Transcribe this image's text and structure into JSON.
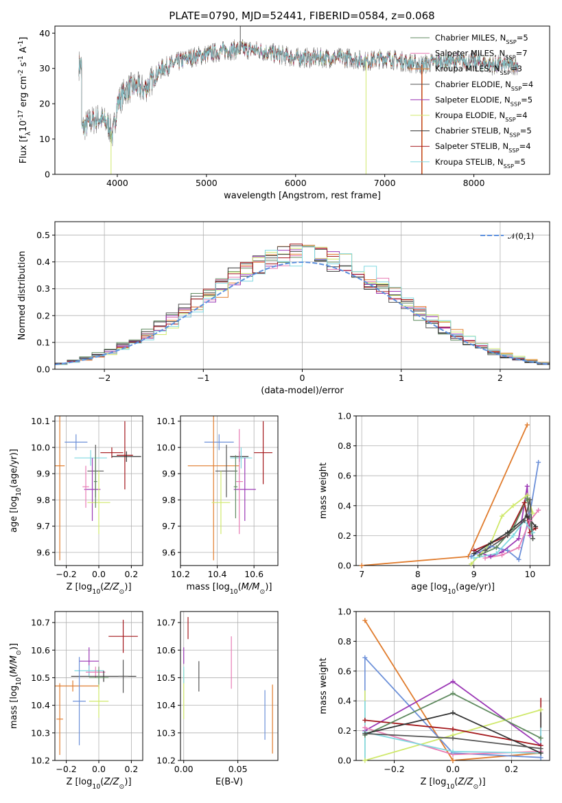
{
  "colors": [
    "#5f8a5f",
    "#e87cb4",
    "#e07b2c",
    "#555555",
    "#9b37b5",
    "#cfe86a",
    "#333333",
    "#a3161a",
    "#7fd8e0"
  ],
  "series_names": [
    "Chabrier MILES, N$_{SSP}$=5",
    "Salpeter MILES, N$_{SSP}$=7",
    "Kroupa MILES, N$_{SSP}$=3",
    "Chabrier ELODIE, N$_{SSP}$=4",
    "Salpeter ELODIE, N$_{SSP}$=5",
    "Kroupa ELODIE, N$_{SSP}$=4",
    "Chabrier STELIB, N$_{SSP}$=5",
    "Salpeter STELIB, N$_{SSP}$=4",
    "Kroupa STELIB, N$_{SSP}$=5"
  ],
  "chart_data": [
    {
      "id": "spectrum",
      "type": "line",
      "title": "PLATE=0790, MJD=52441, FIBERID=0584, z=0.068",
      "xlabel": "wavelength [Angstrom, rest frame]",
      "ylabel": "Flux [f$_\\lambda$10$^{-17}$ erg cm$^{-2}$ s$^{-1}$ A$^{-1}$]",
      "xlim": [
        3300,
        8850
      ],
      "ylim": [
        0,
        42
      ],
      "xticks": [
        4000,
        5000,
        6000,
        7000,
        8000
      ],
      "yticks": [
        0,
        10,
        20,
        30,
        40
      ],
      "grid": false,
      "legend_position": "top-right",
      "continuum_x": [
        3600,
        3700,
        3800,
        3900,
        3950,
        4000,
        4100,
        4200,
        4300,
        4400,
        4500,
        4600,
        4800,
        5000,
        5200,
        5400,
        5600,
        5800,
        6000,
        6200,
        6400,
        6600,
        6800,
        7000,
        7200,
        7400,
        7600,
        7800,
        8000,
        8200,
        8400
      ],
      "continuum_y": [
        13,
        15,
        16,
        14,
        11,
        20,
        24,
        25,
        24,
        27,
        30,
        31,
        33,
        34,
        35,
        35.5,
        35,
        34,
        33,
        33,
        33,
        33,
        32,
        33,
        32,
        31,
        32,
        32,
        32,
        31,
        31
      ]
    },
    {
      "id": "residuals",
      "type": "histogram",
      "xlabel": "(data-model)/error",
      "ylabel": "Normed distribution",
      "xlim": [
        -2.5,
        2.5
      ],
      "ylim": [
        0,
        0.55
      ],
      "xticks": [
        -2,
        -1,
        0,
        1,
        2
      ],
      "xtick_labels": [
        "−2",
        "−1",
        "0",
        "1",
        "2"
      ],
      "yticks": [
        0.0,
        0.1,
        0.2,
        0.3,
        0.4,
        0.5
      ],
      "ytick_labels": [
        "0.0",
        "0.1",
        "0.2",
        "0.3",
        "0.4",
        "0.5"
      ],
      "grid": true,
      "legend_label": "$\\mathcal{N}(0,1)$",
      "legend_position": "top-right",
      "bin_width": 0.125
    },
    {
      "id": "age-vs-z",
      "type": "errorbar",
      "xlabel": "Z [log$_{10}$($Z/Z_\\odot$)]",
      "ylabel": "age  [log$_{10}$($age/yr$)]",
      "xlim": [
        -0.27,
        0.27
      ],
      "ylim": [
        9.55,
        10.12
      ],
      "xticks": [
        -0.2,
        0.0,
        0.2
      ],
      "xtick_labels": [
        "−0.2",
        "0.0",
        "0.2"
      ],
      "yticks": [
        9.6,
        9.7,
        9.8,
        9.9,
        10.0,
        10.1
      ],
      "ytick_labels": [
        "9.6",
        "9.7",
        "9.8",
        "9.9",
        "10.0",
        "10.1"
      ],
      "grid": true,
      "points": [
        {
          "x": -0.14,
          "y": 10.02,
          "xerr": 0.07,
          "yerr": 0.03,
          "c": "#6b8fd8"
        },
        {
          "x": 0.08,
          "y": 9.98,
          "xerr": 0.07,
          "yerr": 0.02,
          "c": "#a3161a"
        },
        {
          "x": 0.16,
          "y": 9.97,
          "xerr": 0.05,
          "yerr": 0.13,
          "c": "#a3161a"
        },
        {
          "x": -0.05,
          "y": 9.96,
          "xerr": 0.1,
          "yerr": 0.03,
          "c": "#7fd8e0"
        },
        {
          "x": -0.24,
          "y": 9.93,
          "xerr": 0.03,
          "yerr": 0.36,
          "c": "#e07b2c"
        },
        {
          "x": -0.02,
          "y": 9.91,
          "xerr": 0.05,
          "yerr": 0.1,
          "c": "#555555"
        },
        {
          "x": -0.04,
          "y": 9.84,
          "xerr": 0.05,
          "yerr": 0.12,
          "c": "#9b37b5"
        },
        {
          "x": 0.0,
          "y": 9.79,
          "xerr": 0.07,
          "yerr": 0.12,
          "c": "#cfe86a"
        },
        {
          "x": 0.17,
          "y": 9.965,
          "xerr": 0.09,
          "yerr": 0.02,
          "c": "#333333"
        },
        {
          "x": -0.08,
          "y": 9.85,
          "xerr": 0.02,
          "yerr": 0.08,
          "c": "#e87cb4"
        },
        {
          "x": -0.02,
          "y": 9.87,
          "xerr": 0.01,
          "yerr": 0.1,
          "c": "#5f8a5f"
        }
      ]
    },
    {
      "id": "age-vs-mass",
      "type": "errorbar",
      "xlabel": "mass [log$_{10}$($M/M_\\odot$)]",
      "ylabel": "",
      "xlim": [
        10.2,
        10.73
      ],
      "ylim": [
        9.55,
        10.12
      ],
      "xticks": [
        10.2,
        10.4,
        10.6
      ],
      "xtick_labels": [
        "10.2",
        "10.4",
        "10.6"
      ],
      "yticks": [
        9.6,
        9.7,
        9.8,
        9.9,
        10.0,
        10.1
      ],
      "ytick_labels": [
        "9.6",
        "9.7",
        "9.8",
        "9.9",
        "10.0",
        "10.1"
      ],
      "grid": true,
      "points": [
        {
          "x": 10.41,
          "y": 10.02,
          "xerr": 0.08,
          "yerr": 0.03,
          "c": "#6b8fd8"
        },
        {
          "x": 10.65,
          "y": 9.98,
          "xerr": 0.05,
          "yerr": 0.12,
          "c": "#a3161a"
        },
        {
          "x": 10.52,
          "y": 9.965,
          "xerr": 0.05,
          "yerr": 0.02,
          "c": "#333333"
        },
        {
          "x": 10.53,
          "y": 9.96,
          "xerr": 0.06,
          "yerr": 0.04,
          "c": "#7fd8e0"
        },
        {
          "x": 10.38,
          "y": 9.93,
          "xerr": 0.14,
          "yerr": 0.36,
          "c": "#e07b2c"
        },
        {
          "x": 10.45,
          "y": 9.91,
          "xerr": 0.06,
          "yerr": 0.1,
          "c": "#555555"
        },
        {
          "x": 10.55,
          "y": 9.84,
          "xerr": 0.06,
          "yerr": 0.12,
          "c": "#9b37b5"
        },
        {
          "x": 10.42,
          "y": 9.79,
          "xerr": 0.05,
          "yerr": 0.12,
          "c": "#cfe86a"
        },
        {
          "x": 10.52,
          "y": 9.87,
          "xerr": 0.02,
          "yerr": 0.2,
          "c": "#e87cb4"
        },
        {
          "x": 10.5,
          "y": 9.85,
          "xerr": 0.01,
          "yerr": 0.12,
          "c": "#5f8a5f"
        }
      ]
    },
    {
      "id": "weight-vs-age",
      "type": "line",
      "xlabel": "age  [log$_{10}$($age/yr$)]",
      "ylabel": "mass weight",
      "xlim": [
        6.9,
        10.35
      ],
      "ylim": [
        0,
        1.0
      ],
      "xticks": [
        7,
        8,
        9,
        10
      ],
      "xtick_labels": [
        "7",
        "8",
        "9",
        "10"
      ],
      "yticks": [
        0.0,
        0.2,
        0.4,
        0.6,
        0.8,
        1.0
      ],
      "ytick_labels": [
        "0.0",
        "0.2",
        "0.4",
        "0.6",
        "0.8",
        "1.0"
      ],
      "grid": true,
      "series": [
        {
          "c": "#e07b2c",
          "x": [
            7.0,
            8.9,
            9.95
          ],
          "y": [
            0.0,
            0.06,
            0.94
          ]
        },
        {
          "c": "#6b8fd8",
          "x": [
            8.95,
            9.3,
            9.6,
            9.8,
            10.0,
            10.15
          ],
          "y": [
            0.06,
            0.13,
            0.1,
            0.04,
            0.35,
            0.69
          ]
        },
        {
          "c": "#9b37b5",
          "x": [
            9.0,
            9.3,
            9.5,
            9.8,
            9.95,
            10.0
          ],
          "y": [
            0.1,
            0.06,
            0.09,
            0.18,
            0.53,
            0.2
          ]
        },
        {
          "c": "#cfe86a",
          "x": [
            8.95,
            9.3,
            9.5,
            9.7,
            9.95,
            10.05
          ],
          "y": [
            0.01,
            0.15,
            0.33,
            0.4,
            0.47,
            0.35
          ]
        },
        {
          "c": "#a3161a",
          "x": [
            9.0,
            9.6,
            9.9,
            10.0,
            10.1
          ],
          "y": [
            0.1,
            0.2,
            0.42,
            0.22,
            0.25
          ]
        },
        {
          "c": "#e87cb4",
          "x": [
            9.2,
            9.5,
            9.8,
            10.0,
            10.15
          ],
          "y": [
            0.05,
            0.07,
            0.12,
            0.3,
            0.37
          ]
        },
        {
          "c": "#7fd8e0",
          "x": [
            9.0,
            9.4,
            9.7,
            9.9,
            10.05
          ],
          "y": [
            0.05,
            0.08,
            0.2,
            0.3,
            0.22
          ]
        },
        {
          "c": "#5f8a5f",
          "x": [
            9.1,
            9.4,
            9.7,
            9.95,
            10.05
          ],
          "y": [
            0.07,
            0.12,
            0.25,
            0.45,
            0.18
          ]
        },
        {
          "c": "#333333",
          "x": [
            9.0,
            9.3,
            9.6,
            9.95,
            10.1
          ],
          "y": [
            0.08,
            0.15,
            0.22,
            0.33,
            0.26
          ]
        },
        {
          "c": "#555555",
          "x": [
            9.2,
            9.6,
            9.9,
            10.0,
            10.05
          ],
          "y": [
            0.1,
            0.2,
            0.3,
            0.44,
            0.18
          ]
        }
      ]
    },
    {
      "id": "mass-vs-z",
      "type": "errorbar",
      "xlabel": "Z [log$_{10}$($Z/Z_\\odot$)]",
      "ylabel": "mass [log$_{10}$($M/M_\\odot$)]",
      "xlim": [
        -0.27,
        0.27
      ],
      "ylim": [
        10.2,
        10.74
      ],
      "xticks": [
        -0.2,
        0.0,
        0.2
      ],
      "xtick_labels": [
        "−0.2",
        "0.0",
        "0.2"
      ],
      "yticks": [
        10.2,
        10.3,
        10.4,
        10.5,
        10.6,
        10.7
      ],
      "ytick_labels": [
        "10.2",
        "10.3",
        "10.4",
        "10.5",
        "10.6",
        "10.7"
      ],
      "grid": true,
      "points": [
        {
          "x": 0.15,
          "y": 10.65,
          "xerr": 0.09,
          "yerr": 0.06,
          "c": "#a3161a"
        },
        {
          "x": -0.06,
          "y": 10.56,
          "xerr": 0.06,
          "yerr": 0.05,
          "c": "#9b37b5"
        },
        {
          "x": -0.06,
          "y": 10.525,
          "xerr": 0.09,
          "yerr": 0.02,
          "c": "#7fd8e0"
        },
        {
          "x": -0.02,
          "y": 10.52,
          "xerr": 0.06,
          "yerr": 0.02,
          "c": "#e87cb4"
        },
        {
          "x": 0.03,
          "y": 10.505,
          "xerr": 0.2,
          "yerr": 0.02,
          "c": "#333333"
        },
        {
          "x": 0.15,
          "y": 10.505,
          "xerr": 0.03,
          "yerr": 0.06,
          "c": "#555555"
        },
        {
          "x": 0.0,
          "y": 10.5,
          "xerr": 0.06,
          "yerr": 0.04,
          "c": "#5f8a5f"
        },
        {
          "x": -0.16,
          "y": 10.47,
          "xerr": 0.16,
          "yerr": 0.02,
          "c": "#e07b2c"
        },
        {
          "x": -0.24,
          "y": 10.35,
          "xerr": 0.02,
          "yerr": 0.13,
          "c": "#e07b2c"
        },
        {
          "x": -0.12,
          "y": 10.415,
          "xerr": 0.04,
          "yerr": 0.16,
          "c": "#6b8fd8"
        },
        {
          "x": 0.0,
          "y": 10.415,
          "xerr": 0.06,
          "yerr": 0.06,
          "c": "#cfe86a"
        }
      ]
    },
    {
      "id": "mass-vs-ebv",
      "type": "errorbar",
      "xlabel": "E(B-V)",
      "ylabel": "",
      "xlim": [
        -0.003,
        0.087
      ],
      "ylim": [
        10.2,
        10.74
      ],
      "xticks": [
        0.0,
        0.05
      ],
      "xtick_labels": [
        "0.00",
        "0.05"
      ],
      "yticks": [
        10.2,
        10.3,
        10.4,
        10.5,
        10.6,
        10.7
      ],
      "ytick_labels": [
        "10.2",
        "10.3",
        "10.4",
        "10.5",
        "10.6",
        "10.7"
      ],
      "grid": true,
      "points": [
        {
          "x": 0.004,
          "y": 10.68,
          "xerr": 0,
          "yerr": 0.04,
          "c": "#a3161a"
        },
        {
          "x": 0.0,
          "y": 10.58,
          "xerr": 0,
          "yerr": 0.03,
          "c": "#9b37b5"
        },
        {
          "x": 0.0,
          "y": 10.44,
          "xerr": 0,
          "yerr": 0.09,
          "c": "#cfe86a"
        },
        {
          "x": 0.0,
          "y": 10.51,
          "xerr": 0,
          "yerr": 0.03,
          "c": "#7fd8e0"
        },
        {
          "x": 0.014,
          "y": 10.505,
          "xerr": 0,
          "yerr": 0.055,
          "c": "#555555"
        },
        {
          "x": 0.044,
          "y": 10.555,
          "xerr": 0,
          "yerr": 0.095,
          "c": "#e87cb4"
        },
        {
          "x": 0.075,
          "y": 10.365,
          "xerr": 0,
          "yerr": 0.09,
          "c": "#6b8fd8"
        },
        {
          "x": 0.082,
          "y": 10.35,
          "xerr": 0,
          "yerr": 0.125,
          "c": "#e07b2c"
        }
      ]
    },
    {
      "id": "weight-vs-z",
      "type": "line",
      "xlabel": "Z [log$_{10}$($Z/Z_\\odot$)]",
      "ylabel": "mass weight",
      "xlim": [
        -0.33,
        0.33
      ],
      "ylim": [
        0,
        1.0
      ],
      "xticks": [
        -0.2,
        0.0,
        0.2
      ],
      "xtick_labels": [
        "−0.2",
        "0.0",
        "0.2"
      ],
      "yticks": [
        0.0,
        0.2,
        0.4,
        0.6,
        0.8,
        1.0
      ],
      "ytick_labels": [
        "0.0",
        "0.2",
        "0.4",
        "0.6",
        "0.8",
        "1.0"
      ],
      "grid": true,
      "series": [
        {
          "c": "#e07b2c",
          "x": [
            -0.3,
            0.0,
            0.3
          ],
          "y": [
            0.94,
            0.0,
            0.05
          ]
        },
        {
          "c": "#6b8fd8",
          "x": [
            -0.3,
            0.0,
            0.3
          ],
          "y": [
            0.69,
            0.05,
            0.02
          ]
        },
        {
          "c": "#9b37b5",
          "x": [
            -0.3,
            0.0,
            0.3
          ],
          "y": [
            0.2,
            0.53,
            0.1
          ]
        },
        {
          "c": "#cfe86a",
          "x": [
            -0.3,
            0.0,
            0.3
          ],
          "y": [
            0.0,
            0.17,
            0.34
          ]
        },
        {
          "c": "#a3161a",
          "x": [
            -0.3,
            0.0,
            0.3
          ],
          "y": [
            0.27,
            0.21,
            0.1
          ]
        },
        {
          "c": "#e87cb4",
          "x": [
            -0.3,
            0.0,
            0.3
          ],
          "y": [
            0.22,
            0.04,
            0.06
          ]
        },
        {
          "c": "#7fd8e0",
          "x": [
            -0.3,
            0.0,
            0.3
          ],
          "y": [
            0.19,
            0.06,
            0.05
          ]
        },
        {
          "c": "#5f8a5f",
          "x": [
            -0.3,
            0.0,
            0.3
          ],
          "y": [
            0.17,
            0.45,
            0.15
          ]
        },
        {
          "c": "#333333",
          "x": [
            -0.3,
            0.0,
            0.3
          ],
          "y": [
            0.18,
            0.32,
            0.05
          ]
        },
        {
          "c": "#555555",
          "x": [
            -0.3,
            0.0,
            0.3
          ],
          "y": [
            0.18,
            0.15,
            0.08
          ]
        }
      ],
      "verticals": [
        {
          "c": "#6b8fd8",
          "x": -0.3,
          "y0": 0.0,
          "y1": 0.69
        },
        {
          "c": "#cfe86a",
          "x": -0.3,
          "y0": 0.0,
          "y1": 0.47
        },
        {
          "c": "#7fd8e0",
          "x": -0.3,
          "y0": 0.0,
          "y1": 0.4
        },
        {
          "c": "#a3161a",
          "x": 0.3,
          "y0": 0.05,
          "y1": 0.42
        },
        {
          "c": "#333333",
          "x": 0.3,
          "y0": 0.05,
          "y1": 0.34
        },
        {
          "c": "#6b8fd8",
          "x": 0.3,
          "y0": 0.0,
          "y1": 0.2
        },
        {
          "c": "#7fd8e0",
          "x": 0.3,
          "y0": 0.0,
          "y1": 0.22
        }
      ]
    }
  ]
}
